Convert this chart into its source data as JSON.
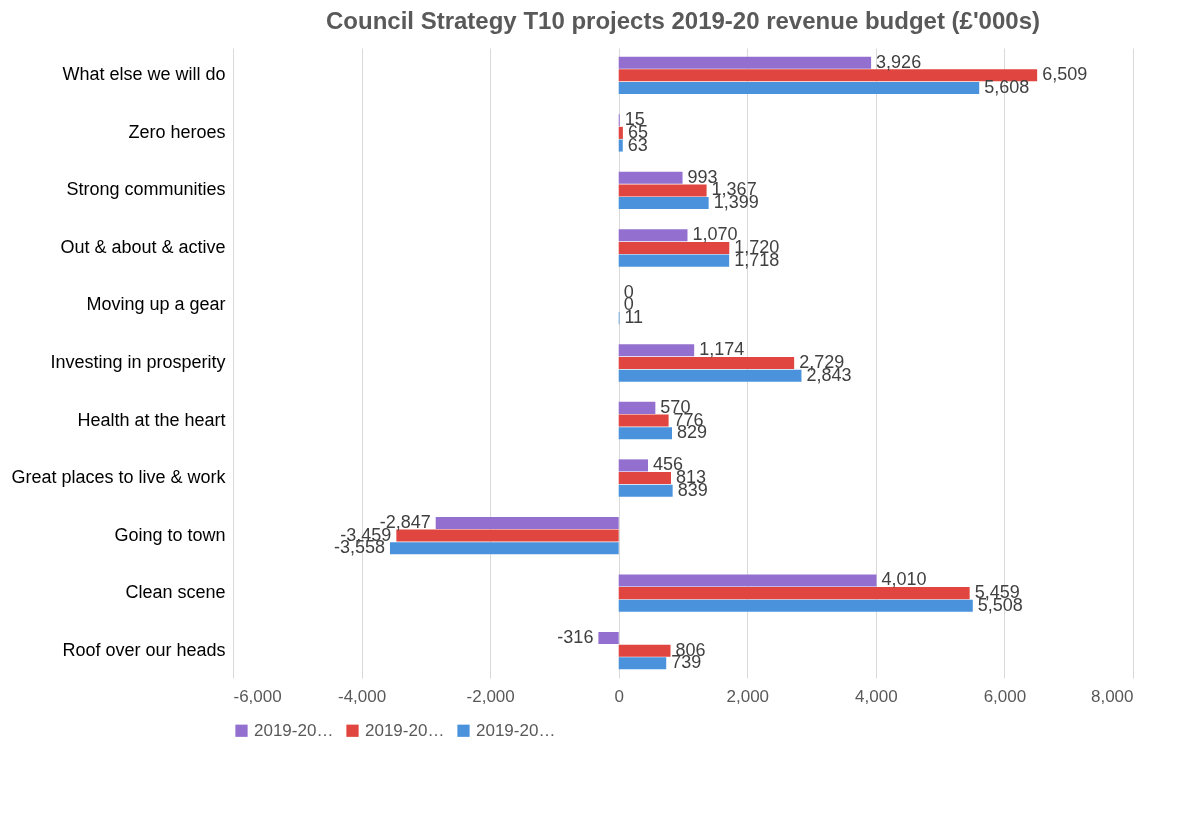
{
  "chart_data": {
    "type": "bar",
    "orientation": "horizontal",
    "title": "Council Strategy T10 projects 2019-20 revenue budget (£'000s)",
    "categories": [
      "What else we will do",
      "Zero heroes",
      "Strong communities",
      "Out & about & active",
      "Moving up a gear",
      "Investing in prosperity",
      "Health at the heart",
      "Great places to live & work",
      "Going to town",
      "Clean scene",
      "Roof over our heads"
    ],
    "series": [
      {
        "name": "2019-20…",
        "color": "#9370cf",
        "values": [
          3926,
          15,
          993,
          1070,
          0,
          1174,
          570,
          456,
          -2847,
          4010,
          -316
        ],
        "value_labels": [
          "3,926",
          "15",
          "993",
          "1,070",
          "0",
          "1,174",
          "570",
          "456",
          "-2,847",
          "4,010",
          "-316"
        ]
      },
      {
        "name": "2019-20…",
        "color": "#e0453f",
        "values": [
          6509,
          65,
          1367,
          1720,
          0,
          2729,
          776,
          813,
          -3459,
          5459,
          806
        ],
        "value_labels": [
          "6,509",
          "65",
          "1,367",
          "1,720",
          "0",
          "2,729",
          "776",
          "813",
          "-3,459",
          "5,459",
          "806"
        ]
      },
      {
        "name": "2019-20…",
        "color": "#4a93dc",
        "values": [
          5608,
          63,
          1399,
          1718,
          11,
          2843,
          829,
          839,
          -3558,
          5508,
          739
        ],
        "value_labels": [
          "5,608",
          "63",
          "1,399",
          "1,718",
          "11",
          "2,843",
          "829",
          "839",
          "-3,558",
          "5,508",
          "739"
        ]
      }
    ],
    "xlim": [
      -6000,
      8000
    ],
    "xticks": [
      {
        "value": -6000,
        "label": "-6,000"
      },
      {
        "value": -4000,
        "label": "-4,000"
      },
      {
        "value": -2000,
        "label": "-2,000"
      },
      0,
      {
        "value": 2000,
        "label": "2,000"
      },
      {
        "value": 4000,
        "label": "4,000"
      },
      {
        "value": 6000,
        "label": "6,000"
      },
      {
        "value": 8000,
        "label": "8,000"
      }
    ],
    "grid": "x",
    "legend": "bottom"
  }
}
